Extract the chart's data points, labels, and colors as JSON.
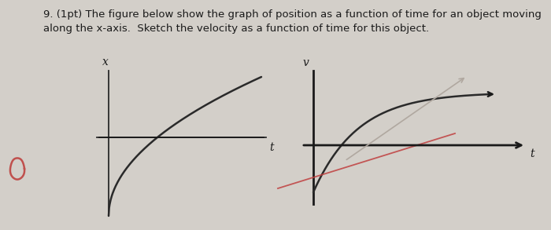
{
  "background_color": "#d3cfc9",
  "text_line1": "9. (1pt) The figure below show the graph of position as a function of time for an object moving",
  "text_line2": "along the x-axis.  Sketch the velocity as a function of time for this object.",
  "text_fontsize": 9.5,
  "text_color": "#1a1a1a",
  "circle_color": "#c0504d",
  "left_graph": {
    "x_label": "x",
    "t_label": "t",
    "curve_color": "#2a2a2a",
    "curve_lw": 1.8
  },
  "right_graph": {
    "v_label": "v",
    "t_label": "t",
    "dark_line_color": "#2a2a2a",
    "dark_line_lw": 1.8,
    "red_line_color": "#c04040",
    "red_line_lw": 1.3,
    "gray_color": "#b0a8a0",
    "gray_lw": 1.2
  }
}
